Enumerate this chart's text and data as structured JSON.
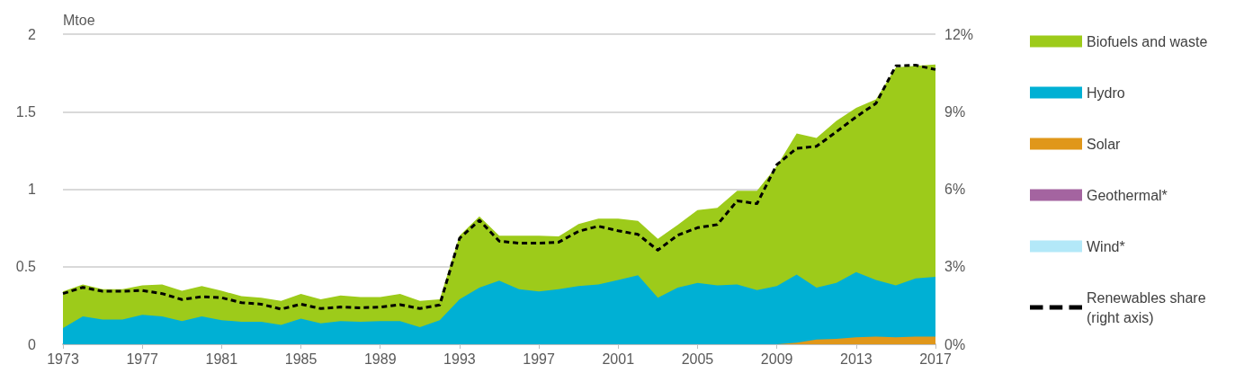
{
  "chart_data": {
    "type": "area",
    "ylabel": "Mtoe",
    "stacked": true,
    "x": [
      1973,
      1974,
      1975,
      1976,
      1977,
      1978,
      1979,
      1980,
      1981,
      1982,
      1983,
      1984,
      1985,
      1986,
      1987,
      1988,
      1989,
      1990,
      1991,
      1992,
      1993,
      1994,
      1995,
      1996,
      1997,
      1998,
      1999,
      2000,
      2001,
      2002,
      2003,
      2004,
      2005,
      2006,
      2007,
      2008,
      2009,
      2010,
      2011,
      2012,
      2013,
      2014,
      2015,
      2016,
      2017
    ],
    "series": [
      {
        "name": "Wind*",
        "color": "#b3e8f8",
        "values": [
          null,
          null,
          null,
          null,
          null,
          null,
          null,
          null,
          null,
          null,
          null,
          null,
          null,
          null,
          null,
          null,
          null,
          null,
          null,
          null,
          null,
          null,
          null,
          null,
          null,
          null,
          null,
          null,
          null,
          null,
          null,
          null,
          null,
          null,
          null,
          null,
          null,
          null,
          null,
          null,
          null,
          null,
          null,
          null,
          null
        ]
      },
      {
        "name": "Geothermal*",
        "color": "#a464a0",
        "values": [
          null,
          null,
          null,
          null,
          null,
          null,
          null,
          null,
          null,
          null,
          null,
          null,
          null,
          null,
          null,
          null,
          null,
          null,
          null,
          null,
          null,
          null,
          null,
          null,
          null,
          null,
          null,
          null,
          null,
          null,
          null,
          null,
          null,
          null,
          null,
          null,
          null,
          null,
          null,
          null,
          null,
          null,
          null,
          null,
          null
        ]
      },
      {
        "name": "Solar",
        "color": "#e0971a",
        "values": [
          0,
          0,
          0,
          0,
          0,
          0,
          0,
          0,
          0,
          0,
          0,
          0,
          0,
          0,
          0,
          0,
          0,
          0,
          0,
          0,
          0,
          0,
          0,
          0,
          0,
          0,
          0,
          0,
          0,
          0,
          0,
          0,
          0,
          0,
          0,
          0,
          0,
          0.01,
          0.03,
          0.035,
          0.045,
          0.05,
          0.045,
          0.05,
          0.05
        ]
      },
      {
        "name": "Hydro",
        "color": "#00b0d4",
        "values": [
          0.105,
          0.18,
          0.16,
          0.16,
          0.19,
          0.18,
          0.15,
          0.18,
          0.155,
          0.145,
          0.145,
          0.125,
          0.165,
          0.135,
          0.15,
          0.145,
          0.15,
          0.15,
          0.11,
          0.155,
          0.29,
          0.365,
          0.41,
          0.355,
          0.34,
          0.355,
          0.375,
          0.385,
          0.415,
          0.445,
          0.3,
          0.365,
          0.395,
          0.38,
          0.385,
          0.35,
          0.375,
          0.44,
          0.335,
          0.36,
          0.42,
          0.365,
          0.335,
          0.375,
          0.385
        ]
      },
      {
        "name": "Biofuels and waste",
        "color": "#9dcb1a",
        "values": [
          0.235,
          0.205,
          0.195,
          0.195,
          0.19,
          0.205,
          0.195,
          0.195,
          0.19,
          0.165,
          0.155,
          0.155,
          0.16,
          0.155,
          0.165,
          0.16,
          0.155,
          0.175,
          0.17,
          0.135,
          0.41,
          0.46,
          0.29,
          0.345,
          0.36,
          0.34,
          0.4,
          0.425,
          0.395,
          0.35,
          0.38,
          0.405,
          0.47,
          0.5,
          0.605,
          0.64,
          0.775,
          0.91,
          0.965,
          1.045,
          1.06,
          1.165,
          1.405,
          1.37,
          1.37
        ]
      },
      {
        "name": "Renewables share (right axis)",
        "type": "line",
        "axis": "y2",
        "color": "#000000",
        "line_style": "dashed",
        "marker": "none",
        "values": [
          1.96,
          2.2,
          2.05,
          2.05,
          2.08,
          1.96,
          1.73,
          1.84,
          1.8,
          1.61,
          1.55,
          1.36,
          1.55,
          1.38,
          1.44,
          1.41,
          1.44,
          1.53,
          1.38,
          1.52,
          4.1,
          4.8,
          3.99,
          3.91,
          3.91,
          3.95,
          4.37,
          4.57,
          4.39,
          4.25,
          3.64,
          4.22,
          4.51,
          4.63,
          5.55,
          5.44,
          6.95,
          7.58,
          7.66,
          8.22,
          8.8,
          9.32,
          10.77,
          10.8,
          10.63
        ]
      }
    ],
    "xlim": [
      1973,
      2017
    ],
    "xticks": [
      1973,
      1977,
      1981,
      1985,
      1989,
      1993,
      1997,
      2001,
      2005,
      2009,
      2013,
      2017
    ],
    "ylim": [
      0,
      2
    ],
    "yticks": [
      0,
      0.5,
      1,
      1.5,
      2
    ],
    "y2lim": [
      0,
      12
    ],
    "y2ticks": [
      {
        "value": 0,
        "label": "0%"
      },
      {
        "value": 3,
        "label": "3%"
      },
      {
        "value": 6,
        "label": "6%"
      },
      {
        "value": 9,
        "label": "9%"
      },
      {
        "value": 12,
        "label": "12%"
      }
    ],
    "grid": "y",
    "legend": "right"
  }
}
